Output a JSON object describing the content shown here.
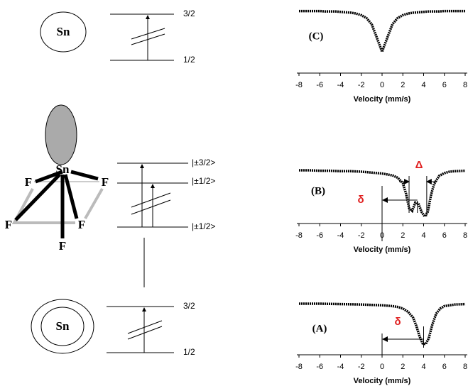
{
  "diagrams": {
    "top": {
      "atom": "Sn",
      "levels": [
        "3/2",
        "1/2"
      ]
    },
    "middle": {
      "atom": "Sn",
      "ligands": [
        "F",
        "F",
        "F",
        "F",
        "F"
      ],
      "levels": [
        "|±3/2>",
        "|±1/2>",
        "|±1/2>"
      ]
    },
    "bottom": {
      "atom": "Sn",
      "levels": [
        "3/2",
        "1/2"
      ]
    }
  },
  "chart_data": [
    {
      "type": "line",
      "title": "(C)",
      "xlabel": "Velocity (mm/s)",
      "color": "#000000",
      "x": [
        -8,
        -7.5,
        -7,
        -6.5,
        -6,
        -5.5,
        -5,
        -4.5,
        -4,
        -3.5,
        -3,
        -2.5,
        -2,
        -1.5,
        -1,
        -0.5,
        0,
        0.5,
        1,
        1.5,
        2,
        2.5,
        3,
        3.5,
        4,
        4.5,
        5,
        5.5,
        6,
        6.5,
        7,
        7.5,
        8
      ],
      "values": [
        0.99,
        0.99,
        0.99,
        0.99,
        0.99,
        0.98,
        0.98,
        0.98,
        0.97,
        0.96,
        0.95,
        0.93,
        0.89,
        0.82,
        0.67,
        0.34,
        0,
        0.34,
        0.67,
        0.82,
        0.89,
        0.93,
        0.95,
        0.96,
        0.97,
        0.98,
        0.98,
        0.98,
        0.99,
        0.99,
        0.99,
        0.99,
        0.99
      ],
      "xlim": [
        -8,
        8
      ],
      "ylim": [
        0,
        1
      ],
      "xticks": [
        -8,
        -6,
        -4,
        -2,
        0,
        2,
        4,
        6,
        8
      ]
    },
    {
      "type": "line",
      "title": "(B)",
      "xlabel": "Velocity (mm/s)",
      "color": "#000000",
      "x": [
        -8,
        -7,
        -6,
        -5,
        -4,
        -3,
        -2,
        -1,
        0,
        0.5,
        1,
        1.5,
        2,
        2.3,
        2.6,
        2.9,
        3.2,
        3.5,
        3.8,
        4.1,
        4.4,
        4.7,
        5,
        5.5,
        6,
        6.5,
        7,
        8
      ],
      "values": [
        1,
        1,
        0.99,
        0.99,
        0.98,
        0.98,
        0.97,
        0.95,
        0.93,
        0.91,
        0.89,
        0.84,
        0.72,
        0.5,
        0.18,
        0.12,
        0.3,
        0.28,
        0.1,
        0,
        0.1,
        0.45,
        0.7,
        0.88,
        0.94,
        0.97,
        0.98,
        0.99
      ],
      "xlim": [
        -8,
        8
      ],
      "ylim": [
        0,
        1
      ],
      "xticks": [
        -8,
        -6,
        -4,
        -2,
        0,
        2,
        4,
        6,
        8
      ],
      "annotations": [
        {
          "text": "δ",
          "from": 0,
          "to": 3.4
        },
        {
          "text": "Δ",
          "from": 2.6,
          "to": 4.3
        }
      ]
    },
    {
      "type": "line",
      "title": "(A)",
      "xlabel": "Velocity (mm/s)",
      "color": "#000000",
      "x": [
        -8,
        -6,
        -4,
        -2,
        -1,
        0,
        1,
        1.5,
        2,
        2.5,
        3,
        3.3,
        3.6,
        3.9,
        4.2,
        4.5,
        4.8,
        5.2,
        5.6,
        6,
        7,
        8
      ],
      "values": [
        1,
        1,
        0.99,
        0.98,
        0.97,
        0.96,
        0.94,
        0.92,
        0.88,
        0.8,
        0.65,
        0.45,
        0.2,
        0.02,
        0,
        0.15,
        0.45,
        0.75,
        0.88,
        0.94,
        0.98,
        0.99
      ],
      "xlim": [
        -8,
        8
      ],
      "ylim": [
        0,
        1
      ],
      "xticks": [
        -8,
        -6,
        -4,
        -2,
        0,
        2,
        4,
        6,
        8
      ],
      "annotations": [
        {
          "text": "δ",
          "from": 0,
          "to": 4
        }
      ]
    }
  ]
}
